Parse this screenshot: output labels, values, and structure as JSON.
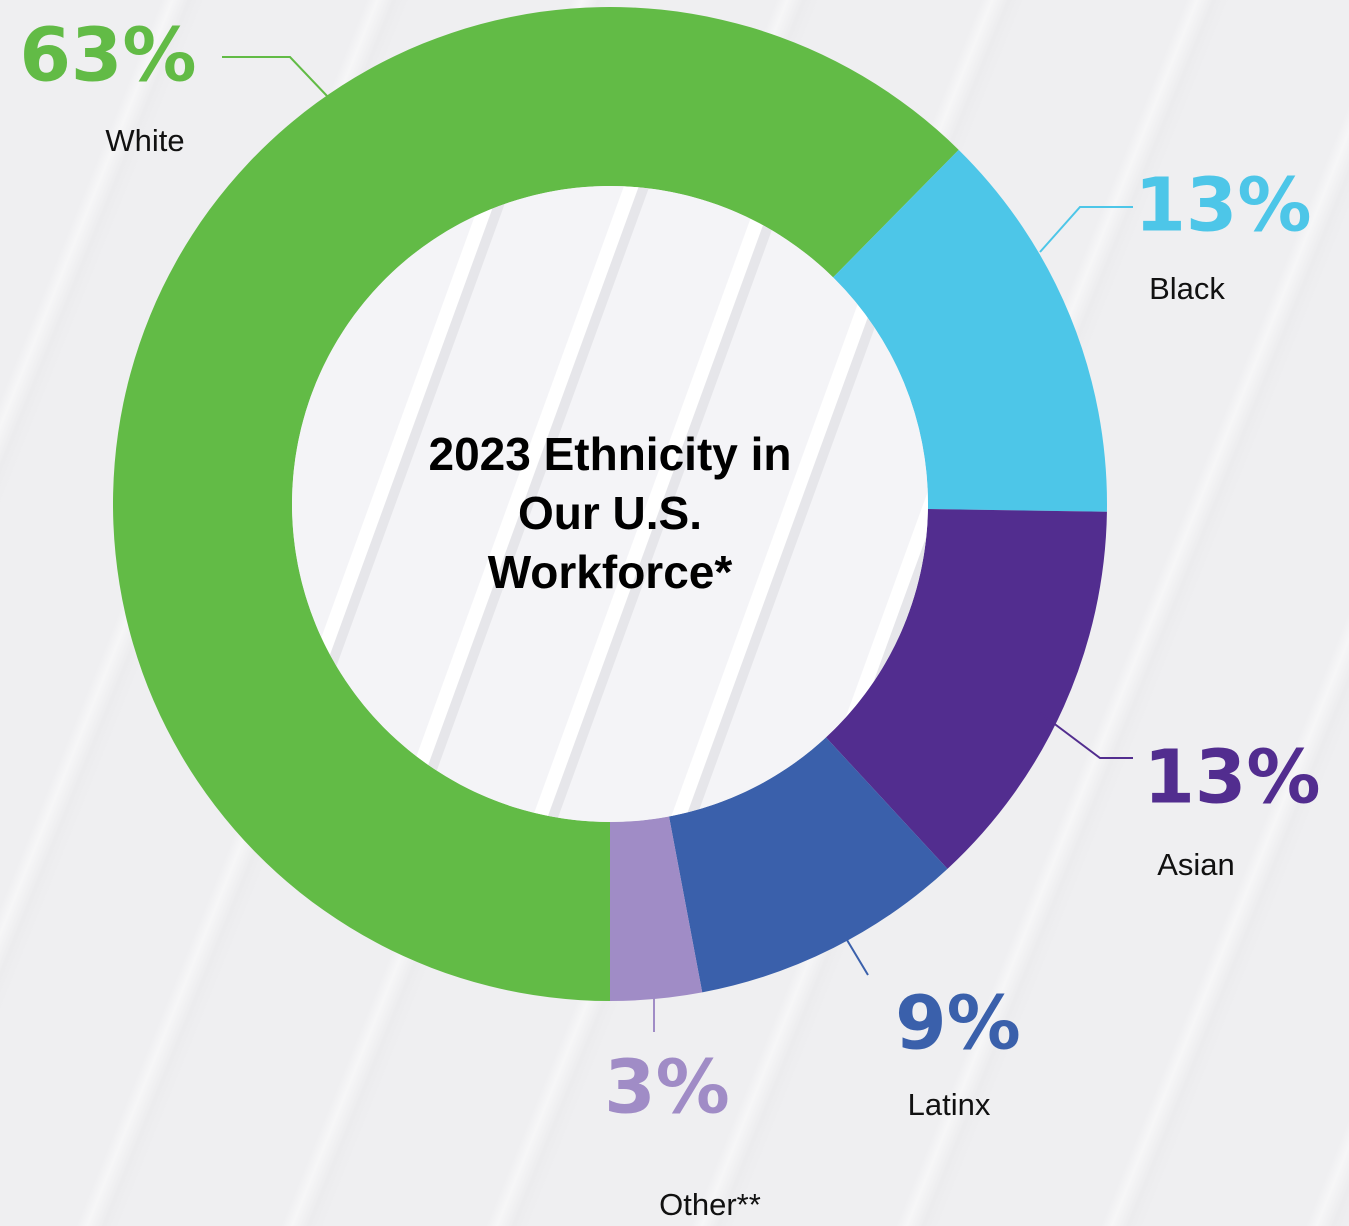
{
  "chart_data": {
    "type": "pie",
    "title": "2023 Ethnicity in Our U.S. Workforce*",
    "categories": [
      "White",
      "Black",
      "Asian",
      "Latinx",
      "Other**"
    ],
    "values": [
      63,
      13,
      13,
      9,
      3
    ],
    "value_labels": [
      "63%",
      "13%",
      "13%",
      "9%",
      "3%"
    ],
    "colors": [
      "#62bb46",
      "#4dc6e8",
      "#522d8f",
      "#3a60ab",
      "#a08cc6"
    ],
    "donut": true
  }
}
